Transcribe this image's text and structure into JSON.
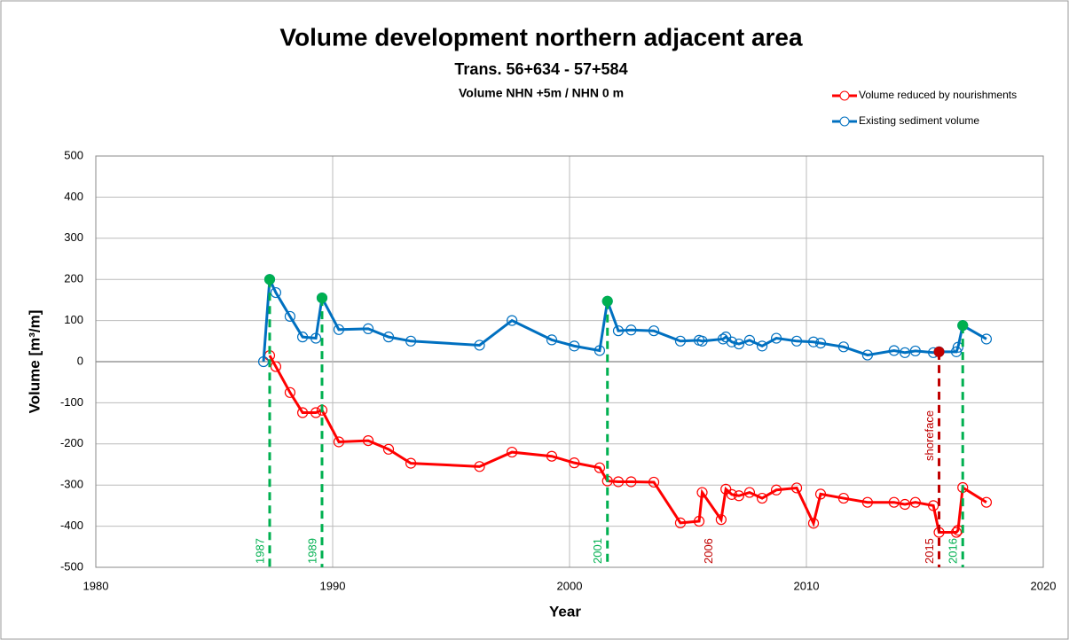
{
  "chart_data": {
    "type": "line",
    "title": "Volume development northern adjacent area",
    "subtitle": "Trans. 56+634 - 57+584",
    "subtitle2": "Volume NHN +5m / NHN 0 m",
    "x_label": "Year",
    "y_label": "Volume [m³/m]",
    "xlim": [
      1980,
      2020
    ],
    "xticks": [
      1980,
      1990,
      2000,
      2010,
      2020
    ],
    "ylim": [
      -500,
      500
    ],
    "yticks": [
      -500,
      -400,
      -300,
      -200,
      -100,
      0,
      100,
      200,
      300,
      400,
      500
    ],
    "grid": true,
    "legend": "top-right",
    "series": [
      {
        "name": "Volume reduced by nourishments",
        "color": "#ff0000",
        "x": [
          1987.34,
          1987.6,
          1988.2,
          1988.73,
          1989.29,
          1989.55,
          1990.26,
          1991.5,
          1992.36,
          1993.3,
          1996.2,
          1997.57,
          1999.25,
          2000.2,
          2001.27,
          2001.6,
          2002.06,
          2002.6,
          2003.56,
          2004.68,
          2005.47,
          2005.6,
          2006.4,
          2006.6,
          2006.85,
          2007.15,
          2007.6,
          2008.13,
          2008.73,
          2009.59,
          2010.3,
          2010.6,
          2011.57,
          2012.58,
          2013.7,
          2014.16,
          2014.6,
          2015.36,
          2015.6,
          2016.33,
          2016.4,
          2016.6,
          2017.6
        ],
        "values": [
          15,
          -12,
          -75,
          -124,
          -124,
          -118,
          -195,
          -192,
          -213,
          -247,
          -255,
          -220,
          -230,
          -246,
          -258,
          -290,
          -292,
          -292,
          -293,
          -392,
          -388,
          -318,
          -384,
          -310,
          -323,
          -326,
          -318,
          -332,
          -312,
          -307,
          -393,
          -322,
          -332,
          -342,
          -342,
          -347,
          -342,
          -350,
          -415,
          -415,
          -410,
          -306,
          -342
        ]
      },
      {
        "name": "Existing sediment volume",
        "color": "#0070c0",
        "x": [
          1987.08,
          1987.34,
          1987.6,
          1988.2,
          1988.73,
          1989.29,
          1989.55,
          1990.26,
          1991.5,
          1992.36,
          1993.3,
          1996.2,
          1997.57,
          1999.25,
          2000.2,
          2001.27,
          2001.6,
          2002.06,
          2002.6,
          2003.56,
          2004.68,
          2005.47,
          2005.6,
          2006.48,
          2006.6,
          2006.85,
          2007.15,
          2007.6,
          2008.13,
          2008.73,
          2009.59,
          2010.3,
          2010.6,
          2011.57,
          2012.58,
          2013.7,
          2014.16,
          2014.6,
          2015.36,
          2015.6,
          2016.33,
          2016.4,
          2016.6,
          2017.6
        ],
        "values": [
          0,
          200,
          168,
          110,
          60,
          57,
          155,
          78,
          80,
          60,
          50,
          40,
          100,
          53,
          38,
          27,
          147,
          75,
          77,
          75,
          50,
          52,
          50,
          55,
          60,
          48,
          43,
          52,
          38,
          57,
          50,
          48,
          45,
          36,
          16,
          27,
          22,
          26,
          22,
          24,
          24,
          35,
          88,
          55
        ]
      }
    ],
    "events": [
      {
        "point": 1,
        "label": "1987",
        "color": "#00b050"
      },
      {
        "point": 6,
        "label": "1989",
        "color": "#00b050"
      },
      {
        "point": 16,
        "label": "2001",
        "color": "#00b050"
      },
      {
        "point": 39,
        "label": "2015",
        "color": "#c00000",
        "note": "shoreface"
      },
      {
        "point": 42,
        "label": "2016",
        "color": "#00b050"
      }
    ],
    "annotations": [
      {
        "x": 2005.9,
        "label": "2006",
        "color": "#c00000"
      }
    ]
  }
}
